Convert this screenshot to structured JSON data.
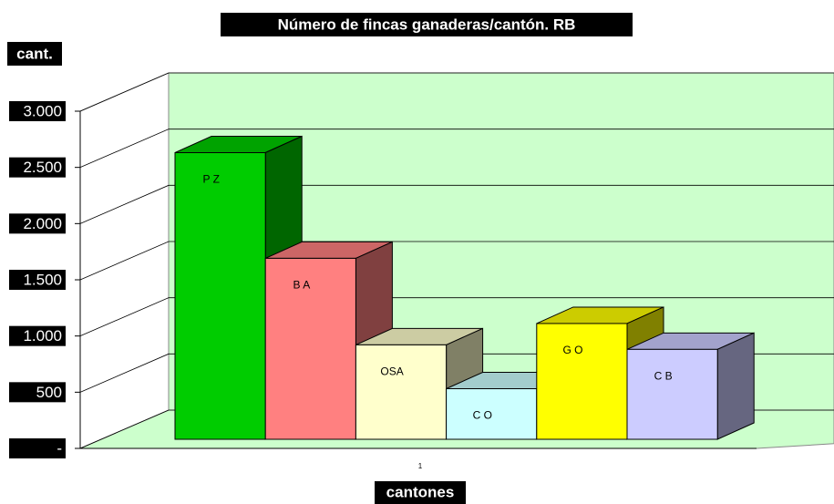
{
  "chart_data": {
    "type": "bar3d",
    "title": "Número de fincas ganaderas/cantón. RB",
    "y_label": "cant.",
    "x_label": "cantones",
    "categories": [
      "1"
    ],
    "series": [
      {
        "name": "P Z",
        "color": "#00cc00",
        "values": [
          2550
        ]
      },
      {
        "name": "B A",
        "color": "#ff8080",
        "values": [
          1610
        ]
      },
      {
        "name": "OSA",
        "color": "#ffffcc",
        "values": [
          840
        ]
      },
      {
        "name": "C O",
        "color": "#ccffff",
        "values": [
          450
        ]
      },
      {
        "name": "G O",
        "color": "#ffff00",
        "values": [
          1030
        ]
      },
      {
        "name": "C B",
        "color": "#ccccff",
        "values": [
          800
        ]
      }
    ],
    "ylim": [
      0,
      3000
    ],
    "yticks": [
      {
        "value": 0,
        "label": "-"
      },
      500,
      {
        "value": 1000,
        "label": "1.000"
      },
      {
        "value": 1500,
        "label": "1.500"
      },
      {
        "value": 2000,
        "label": "2.000"
      },
      {
        "value": 2500,
        "label": "2.500"
      },
      {
        "value": 3000,
        "label": "3.000"
      }
    ],
    "grid": true,
    "wall_color": "#ccffcc"
  }
}
